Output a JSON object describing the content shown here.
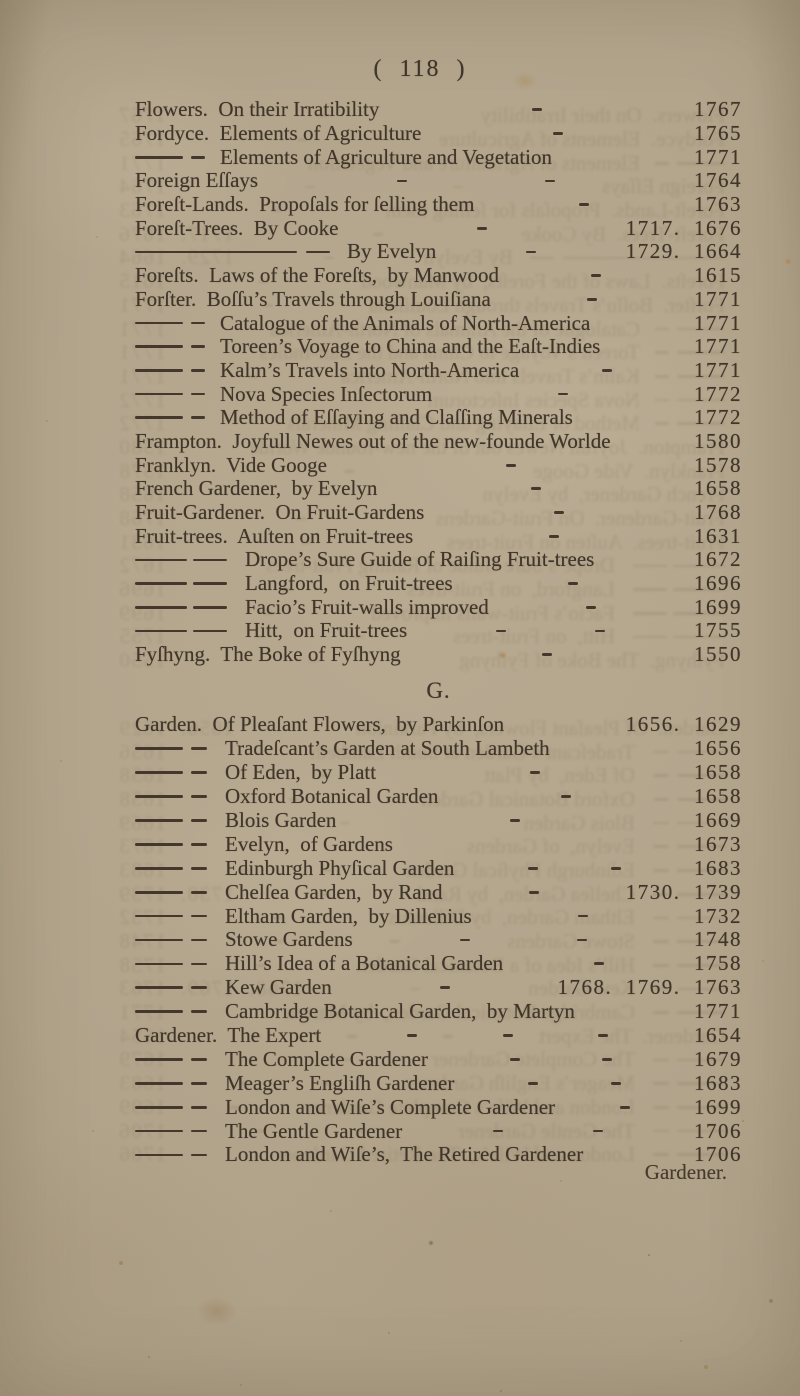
{
  "page": {
    "header": "(  118  )",
    "section_heading": "G.",
    "catchword": "Gardener."
  },
  "colors": {
    "paper": "#b2a48b",
    "ink": "#3f3529"
  },
  "entries_f": [
    {
      "dash": "none",
      "text": "Flowers.  On their Irratibility",
      "seps": 1,
      "years": "1767"
    },
    {
      "dash": "none",
      "text": "Fordyce.  Elements of Agriculture",
      "seps": 1,
      "years": "1765"
    },
    {
      "dash": "a",
      "text": "Elements of Agriculture and Vegetation",
      "seps": 0,
      "years": "1771"
    },
    {
      "dash": "none",
      "text": "Foreign Eſſays",
      "seps": 2,
      "years": "1764"
    },
    {
      "dash": "none",
      "text": "Foreſt-Lands.  Propoſals for ſelling them",
      "seps": 1,
      "years": "1763"
    },
    {
      "dash": "none",
      "text": "Foreſt-Trees.  By Cooke",
      "seps": 1,
      "years": "1717.  1676"
    },
    {
      "dash": "long",
      "text": "By Evelyn",
      "seps": 1,
      "years": "1729.  1664"
    },
    {
      "dash": "none",
      "text": "Foreſts.  Laws of the Foreſts,  by Manwood",
      "seps": 1,
      "years": "1615"
    },
    {
      "dash": "none",
      "text": "Forſter.  Boſſu’s Travels through Louiſiana",
      "seps": 1,
      "years": "1771"
    },
    {
      "dash": "a",
      "text": "Catalogue of the Animals of North-America",
      "seps": 0,
      "years": "1771"
    },
    {
      "dash": "a",
      "text": "Toreen’s Voyage to China and the Eaſt-Indies",
      "seps": 0,
      "years": "1771"
    },
    {
      "dash": "a",
      "text": "Kalm’s Travels into North-America",
      "seps": 1,
      "years": "1771"
    },
    {
      "dash": "a",
      "text": "Nova Species Inſectorum",
      "seps": 1,
      "years": "1772"
    },
    {
      "dash": "a",
      "text": "Method of Eſſaying and Claſſing Minerals",
      "seps": 0,
      "years": "1772"
    },
    {
      "dash": "none",
      "text": "Frampton.  Joyfull Newes out of the new-founde Worlde",
      "seps": 0,
      "years": "1580"
    },
    {
      "dash": "none",
      "text": "Franklyn.  Vide Googe",
      "seps": 1,
      "years": "1578"
    },
    {
      "dash": "none",
      "text": "French Gardener,  by Evelyn",
      "seps": 1,
      "years": "1658"
    },
    {
      "dash": "none",
      "text": "Fruit-Gardener.  On Fruit-Gardens",
      "seps": 1,
      "years": "1768"
    },
    {
      "dash": "none",
      "text": "Fruit-trees.  Auſten on Fruit-trees",
      "seps": 1,
      "years": "1631"
    },
    {
      "dash": "b",
      "text": "Drope’s Sure Guide of Raiſing Fruit-trees",
      "seps": 0,
      "years": "1672"
    },
    {
      "dash": "b",
      "text": "Langford,  on Fruit-trees",
      "seps": 1,
      "years": "1696"
    },
    {
      "dash": "b",
      "text": "Facio’s Fruit-walls improved",
      "seps": 1,
      "years": "1699"
    },
    {
      "dash": "b",
      "text": "Hitt,  on Fruit-trees",
      "seps": 2,
      "years": "1755"
    },
    {
      "dash": "none",
      "text": "Fyſhyng.  The Boke of Fyſhyng",
      "seps": 1,
      "years": "1550"
    }
  ],
  "entries_g": [
    {
      "dash": "none",
      "text": "Garden.  Of Pleaſant Flowers,  by Parkinſon",
      "seps": 0,
      "years": "1656.  1629"
    },
    {
      "dash": "g",
      "text": "Tradeſcant’s Garden at South Lambeth",
      "seps": 0,
      "years": "1656"
    },
    {
      "dash": "g",
      "text": "Of Eden,  by Platt",
      "seps": 1,
      "years": "1658"
    },
    {
      "dash": "g",
      "text": "Oxford Botanical Garden",
      "seps": 1,
      "years": "1658"
    },
    {
      "dash": "g",
      "text": "Blois Garden",
      "seps": 1,
      "years": "1669"
    },
    {
      "dash": "g",
      "text": "Evelyn,  of Gardens",
      "seps": 0,
      "years": "1673"
    },
    {
      "dash": "g",
      "text": "Edinburgh Phyſical Garden",
      "seps": 2,
      "years": "1683"
    },
    {
      "dash": "g",
      "text": "Chelſea Garden,  by Rand",
      "seps": 1,
      "years": "1730.  1739"
    },
    {
      "dash": "g",
      "text": "Eltham Garden,  by Dillenius",
      "seps": 1,
      "years": "1732"
    },
    {
      "dash": "g",
      "text": "Stowe Gardens",
      "seps": 2,
      "years": "1748"
    },
    {
      "dash": "g",
      "text": "Hill’s Idea of a Botanical Garden",
      "seps": 1,
      "years": "1758"
    },
    {
      "dash": "g",
      "text": "Kew Garden",
      "seps": 1,
      "years": "1768.  1769.  1763"
    },
    {
      "dash": "g",
      "text": "Cambridge Botanical Garden,  by Martyn",
      "seps": 0,
      "years": "1771"
    },
    {
      "dash": "none",
      "text": "Gardener.  The Expert",
      "seps": 3,
      "years": "1654"
    },
    {
      "dash": "g",
      "text": "The Complete Gardener",
      "seps": 2,
      "years": "1679"
    },
    {
      "dash": "g",
      "text": "Meager’s Engliſh Gardener",
      "seps": 2,
      "years": "1683"
    },
    {
      "dash": "g",
      "text": "London and Wiſe’s Complete Gardener",
      "seps": 1,
      "years": "1699"
    },
    {
      "dash": "g",
      "text": "The Gentle Gardener",
      "seps": 2,
      "years": "1706"
    },
    {
      "dash": "g",
      "text": "London and Wiſe’s,  The Retired Gardener",
      "seps": 0,
      "years": "1706"
    }
  ]
}
